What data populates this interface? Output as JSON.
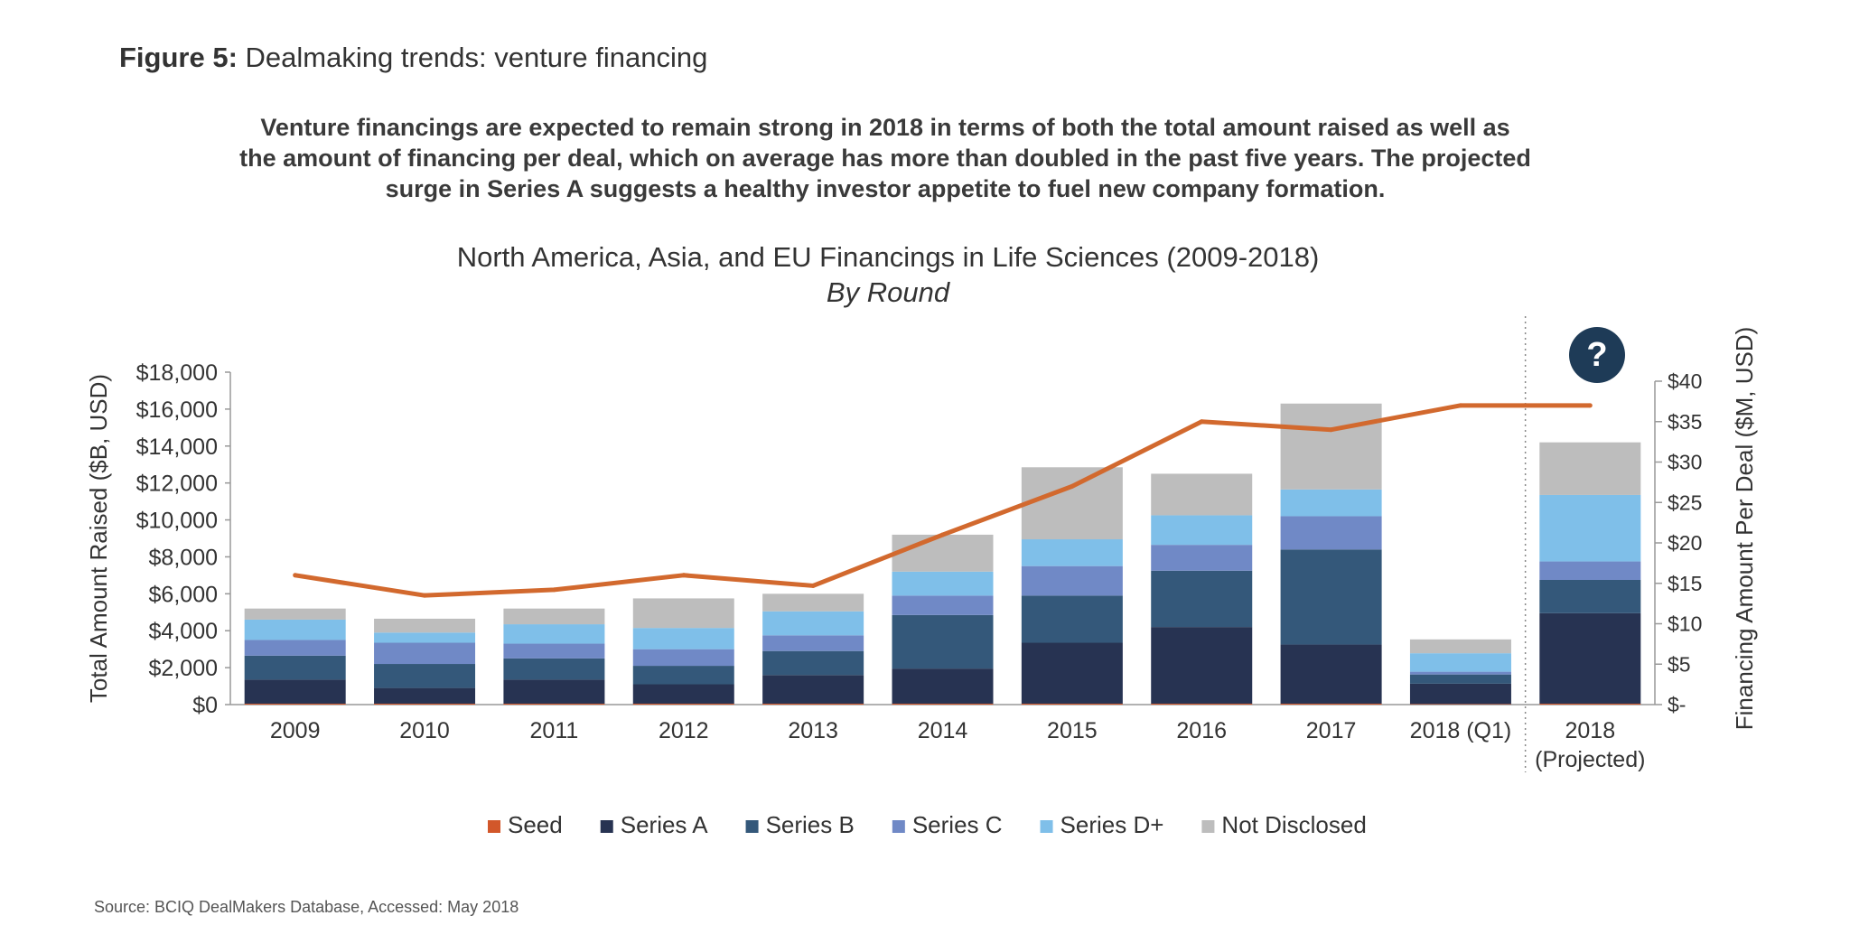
{
  "figure": {
    "label": "Figure 5:",
    "title": "Dealmaking trends: venture financing"
  },
  "summary": {
    "line1": "Venture financings are expected to remain strong in 2018 in terms of  both the total amount raised as well as",
    "line2": "the amount of financing per deal, which on average has more than doubled in the past five years. The projected",
    "line3": "surge in Series A suggests a healthy investor appetite to fuel new company formation."
  },
  "help_badge": "?",
  "source": "Source: BCIQ DealMakers Database, Accessed: May 2018",
  "colors": {
    "Seed": "#d2572a",
    "Series A": "#273352",
    "Series B": "#34587a",
    "Series C": "#7089c6",
    "Series D+": "#7fbfe9",
    "Not Disclosed": "#bdbdbd",
    "line": "#d2692e"
  },
  "chart_data": {
    "type": "bar",
    "stacked": true,
    "title": "North America, Asia, and EU Financings in Life Sciences (2009-2018)",
    "subtitle": "By Round",
    "categories": [
      "2009",
      "2010",
      "2011",
      "2012",
      "2013",
      "2014",
      "2015",
      "2016",
      "2017",
      "2018 (Q1)",
      "2018|(Projected)"
    ],
    "ylabel": "Total Amount Raised ($B, USD)",
    "y2label": "Financing Amount Per Deal ($M, USD)",
    "ylim": [
      0,
      18000
    ],
    "y2lim": [
      0,
      40
    ],
    "yticks": [
      "$0",
      "$2,000",
      "$4,000",
      "$6,000",
      "$8,000",
      "$10,000",
      "$12,000",
      "$14,000",
      "$16,000",
      "$18,000"
    ],
    "y2ticks": [
      "$-",
      "$5",
      "$10",
      "$15",
      "$20",
      "$25",
      "$30",
      "$35",
      "$40"
    ],
    "legend_position": "bottom",
    "series": [
      {
        "name": "Seed",
        "values": [
          50,
          50,
          50,
          50,
          50,
          50,
          50,
          50,
          50,
          30,
          50
        ]
      },
      {
        "name": "Series A",
        "values": [
          1300,
          850,
          1300,
          1050,
          1550,
          1900,
          3300,
          4150,
          3200,
          1100,
          4900
        ]
      },
      {
        "name": "Series B",
        "values": [
          1300,
          1300,
          1150,
          1000,
          1300,
          2900,
          2550,
          3050,
          5150,
          500,
          1800
        ]
      },
      {
        "name": "Series C",
        "values": [
          850,
          1150,
          800,
          900,
          850,
          1050,
          1600,
          1400,
          1800,
          150,
          1000
        ]
      },
      {
        "name": "Series D+",
        "values": [
          1100,
          550,
          1050,
          1150,
          1300,
          1300,
          1450,
          1600,
          1450,
          1000,
          3600
        ]
      },
      {
        "name": "Not Disclosed",
        "values": [
          600,
          750,
          850,
          1600,
          950,
          2000,
          3900,
          2250,
          4650,
          750,
          2850
        ]
      }
    ],
    "line_series": {
      "name": "Financing Amount Per Deal",
      "axis": "right",
      "values": [
        16,
        13.5,
        14.2,
        16,
        14.7,
        21,
        27,
        35,
        34,
        37,
        37
      ]
    }
  }
}
